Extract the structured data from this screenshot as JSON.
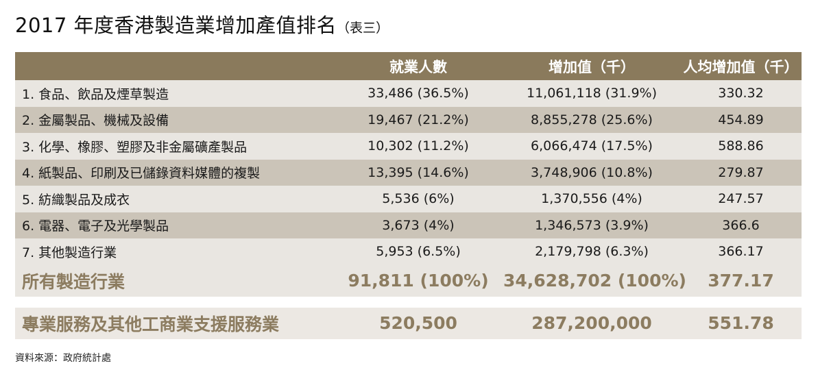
{
  "title": {
    "main": "2017 年度香港製造業增加產值排名",
    "sub": "（表三）"
  },
  "headers": [
    "",
    "就業人數",
    "增加值（千）",
    "人均增加值（千）"
  ],
  "rows": [
    {
      "name": "1. 食品、飲品及煙草製造",
      "employment": "33,486 (36.5%)",
      "value_added": "11,061,118 (31.9%)",
      "per_capita": "330.32"
    },
    {
      "name": "2. 金屬製品、機械及設備",
      "employment": "19,467 (21.2%)",
      "value_added": "8,855,278 (25.6%)",
      "per_capita": "454.89"
    },
    {
      "name": "3. 化學、橡膠、塑膠及非金屬礦產製品",
      "employment": "10,302 (11.2%)",
      "value_added": "6,066,474 (17.5%)",
      "per_capita": "588.86"
    },
    {
      "name": "4. 紙製品、印刷及已儲錄資料媒體的複製",
      "employment": "13,395 (14.6%)",
      "value_added": "3,748,906 (10.8%)",
      "per_capita": "279.87"
    },
    {
      "name": "5. 紡織製品及成衣",
      "employment": "5,536 (6%)",
      "value_added": "1,370,556 (4%)",
      "per_capita": "247.57"
    },
    {
      "name": "6. 電器、電子及光學製品",
      "employment": "3,673 (4%)",
      "value_added": "1,346,573 (3.9%)",
      "per_capita": "366.6"
    },
    {
      "name": "7. 其他製造行業",
      "employment": "5,953 (6.5%)",
      "value_added": "2,179,798 (6.3%)",
      "per_capita": "366.17"
    }
  ],
  "total": {
    "name": "所有製造行業",
    "employment": "91,811 (100%)",
    "value_added": "34,628,702 (100%)",
    "per_capita": "377.17"
  },
  "services": {
    "name": "專業服務及其他工商業支援服務業",
    "employment": "520,500",
    "value_added": "287,200,000",
    "per_capita": "551.78"
  },
  "source": "資料來源：政府統計處",
  "colors": {
    "header_bg": "#8a7a5c",
    "row_light": "#e9e6e1",
    "row_dark": "#cbc4b8",
    "accent_text": "#8c7c60"
  }
}
